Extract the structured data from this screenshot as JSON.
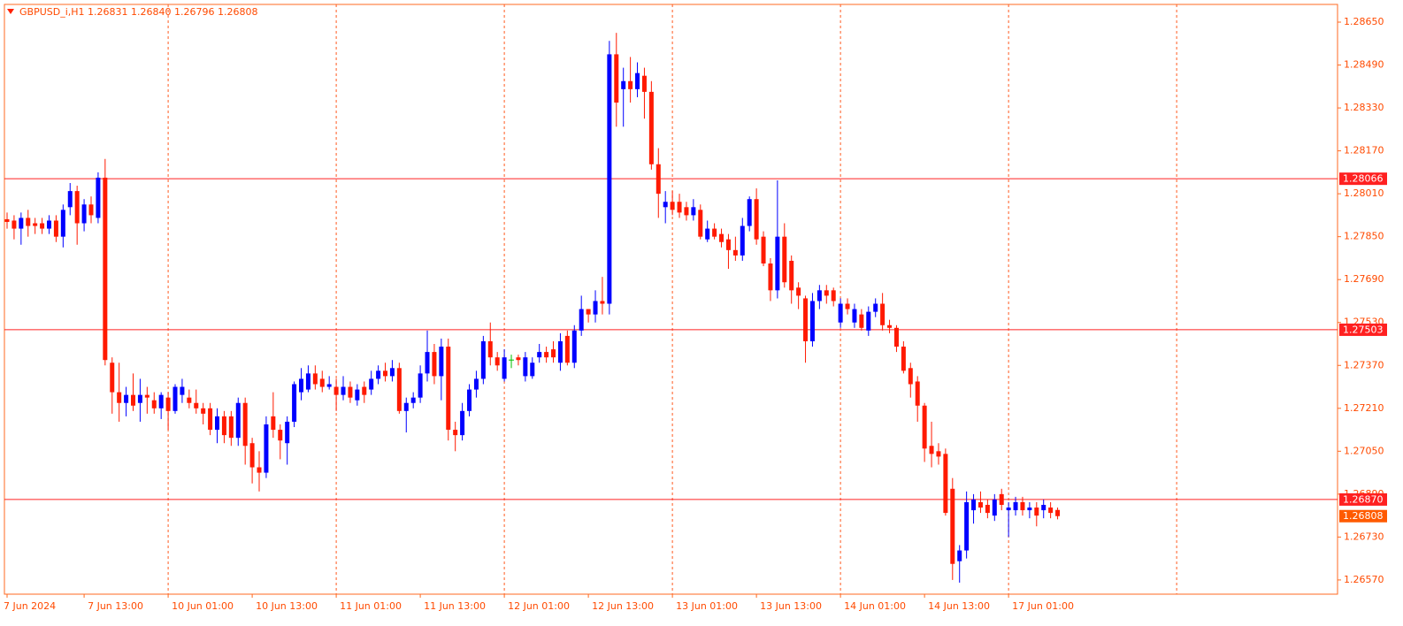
{
  "chart_data": {
    "type": "candlestick",
    "title": "GBPUSD_i,H1  1.26831 1.26840 1.26796 1.26808",
    "up_color": "#0000ff",
    "down_color": "#ff1a00",
    "doji_color": "#00c000",
    "grid": true,
    "ylim": [
      1.26517,
      1.28716
    ],
    "yticks": [
      {
        "value": 1.2865,
        "label": "1.28650"
      },
      {
        "value": 1.2849,
        "label": "1.28490"
      },
      {
        "value": 1.2833,
        "label": "1.28330"
      },
      {
        "value": 1.2817,
        "label": "1.28170"
      },
      {
        "value": 1.2801,
        "label": "1.28010"
      },
      {
        "value": 1.2785,
        "label": "1.27850"
      },
      {
        "value": 1.2769,
        "label": "1.27690"
      },
      {
        "value": 1.2753,
        "label": "1.27530"
      },
      {
        "value": 1.2737,
        "label": "1.27370"
      },
      {
        "value": 1.2721,
        "label": "1.27210"
      },
      {
        "value": 1.2705,
        "label": "1.27050"
      },
      {
        "value": 1.2689,
        "label": "1.26890"
      },
      {
        "value": 1.2673,
        "label": "1.26730"
      },
      {
        "value": 1.2657,
        "label": "1.26570"
      }
    ],
    "hlines": [
      {
        "value": 1.28066,
        "label": "1.28066"
      },
      {
        "value": 1.27503,
        "label": "1.27503"
      },
      {
        "value": 1.2687,
        "label": "1.26870"
      }
    ],
    "price_label": {
      "value": 1.26808,
      "label": "1.26808"
    },
    "categories": [
      "7 Jun 2024",
      null,
      null,
      null,
      null,
      null,
      null,
      null,
      null,
      null,
      null,
      "7 Jun 13:00",
      null,
      null,
      null,
      null,
      null,
      null,
      null,
      null,
      null,
      null,
      null,
      "10 Jun 01:00",
      null,
      null,
      null,
      null,
      null,
      null,
      null,
      null,
      null,
      null,
      null,
      "10 Jun 13:00",
      null,
      null,
      null,
      null,
      null,
      null,
      null,
      null,
      null,
      null,
      null,
      "11 Jun 01:00",
      null,
      null,
      null,
      null,
      null,
      null,
      null,
      null,
      null,
      null,
      null,
      "11 Jun 13:00",
      null,
      null,
      null,
      null,
      null,
      null,
      null,
      null,
      null,
      null,
      null,
      "12 Jun 01:00",
      null,
      null,
      null,
      null,
      null,
      null,
      null,
      null,
      null,
      null,
      null,
      "12 Jun 13:00",
      null,
      null,
      null,
      null,
      null,
      null,
      null,
      null,
      null,
      null,
      null,
      "13 Jun 01:00",
      null,
      null,
      null,
      null,
      null,
      null,
      null,
      null,
      null,
      null,
      null,
      "13 Jun 13:00",
      null,
      null,
      null,
      null,
      null,
      null,
      null,
      null,
      null,
      null,
      null,
      "14 Jun 01:00",
      null,
      null,
      null,
      null,
      null,
      null,
      null,
      null,
      null,
      null,
      null,
      "14 Jun 13:00",
      null,
      null,
      null,
      null,
      null,
      null,
      null,
      null,
      null,
      null,
      null,
      "17 Jun 01:00",
      null,
      null,
      null,
      null,
      null,
      null,
      null
    ],
    "ohlc": [
      [
        1.27915,
        1.2794,
        1.2788,
        1.27905
      ],
      [
        1.2791,
        1.2793,
        1.2784,
        1.2788
      ],
      [
        1.2788,
        1.2794,
        1.2782,
        1.2792
      ],
      [
        1.2792,
        1.2795,
        1.2785,
        1.2789
      ],
      [
        1.279,
        1.2792,
        1.2786,
        1.2789
      ],
      [
        1.279,
        1.2792,
        1.2786,
        1.2788
      ],
      [
        1.2788,
        1.2793,
        1.2786,
        1.2791
      ],
      [
        1.2791,
        1.2793,
        1.2783,
        1.2785
      ],
      [
        1.2785,
        1.2797,
        1.2781,
        1.2795
      ],
      [
        1.2796,
        1.2805,
        1.2793,
        1.2802
      ],
      [
        1.2802,
        1.2804,
        1.2782,
        1.279
      ],
      [
        1.279,
        1.2799,
        1.2787,
        1.2797
      ],
      [
        1.2797,
        1.28,
        1.279,
        1.2793
      ],
      [
        1.2792,
        1.2809,
        1.279,
        1.2807
      ],
      [
        1.2807,
        1.2814,
        1.2737,
        1.2739
      ],
      [
        1.2738,
        1.274,
        1.2719,
        1.2727
      ],
      [
        1.2727,
        1.2738,
        1.2716,
        1.2723
      ],
      [
        1.2723,
        1.2729,
        1.2718,
        1.2726
      ],
      [
        1.2726,
        1.2734,
        1.272,
        1.2722
      ],
      [
        1.2723,
        1.2732,
        1.2716,
        1.2726
      ],
      [
        1.2726,
        1.2729,
        1.2719,
        1.2725
      ],
      [
        1.2724,
        1.2727,
        1.2719,
        1.2721
      ],
      [
        1.2721,
        1.2727,
        1.2717,
        1.2726
      ],
      [
        1.2725,
        1.2727,
        1.2713,
        1.272
      ],
      [
        1.272,
        1.273,
        1.2719,
        1.2729
      ],
      [
        1.2726,
        1.2732,
        1.2723,
        1.2729
      ],
      [
        1.2725,
        1.2728,
        1.2721,
        1.2723
      ],
      [
        1.2723,
        1.2728,
        1.2719,
        1.2721
      ],
      [
        1.2721,
        1.2723,
        1.2715,
        1.2719
      ],
      [
        1.2721,
        1.2723,
        1.2711,
        1.2713
      ],
      [
        1.2713,
        1.2721,
        1.2708,
        1.2718
      ],
      [
        1.2718,
        1.272,
        1.2708,
        1.2711
      ],
      [
        1.2718,
        1.272,
        1.2707,
        1.271
      ],
      [
        1.271,
        1.2725,
        1.2707,
        1.2723
      ],
      [
        1.2723,
        1.2725,
        1.27,
        1.2707
      ],
      [
        1.2708,
        1.271,
        1.2693,
        1.2699
      ],
      [
        1.2699,
        1.2705,
        1.269,
        1.2697
      ],
      [
        1.2697,
        1.2718,
        1.2695,
        1.2715
      ],
      [
        1.2718,
        1.2727,
        1.271,
        1.2713
      ],
      [
        1.2713,
        1.2715,
        1.2702,
        1.2709
      ],
      [
        1.2708,
        1.2718,
        1.27,
        1.2716
      ],
      [
        1.2716,
        1.2731,
        1.2714,
        1.273
      ],
      [
        1.2727,
        1.2736,
        1.2724,
        1.2732
      ],
      [
        1.2728,
        1.2737,
        1.2727,
        1.2734
      ],
      [
        1.2734,
        1.2737,
        1.2728,
        1.273
      ],
      [
        1.2732,
        1.2735,
        1.2727,
        1.2729
      ],
      [
        1.2729,
        1.2733,
        1.2728,
        1.273
      ],
      [
        1.2729,
        1.2732,
        1.272,
        1.2726
      ],
      [
        1.2726,
        1.2733,
        1.2724,
        1.2729
      ],
      [
        1.2729,
        1.2731,
        1.2723,
        1.2725
      ],
      [
        1.2724,
        1.273,
        1.2722,
        1.2728
      ],
      [
        1.2729,
        1.2731,
        1.2723,
        1.2726
      ],
      [
        1.2728,
        1.2735,
        1.2726,
        1.2732
      ],
      [
        1.2732,
        1.2737,
        1.273,
        1.2735
      ],
      [
        1.2735,
        1.2738,
        1.2731,
        1.2733
      ],
      [
        1.2733,
        1.2739,
        1.2731,
        1.2736
      ],
      [
        1.2736,
        1.2738,
        1.2719,
        1.272
      ],
      [
        1.272,
        1.2725,
        1.2712,
        1.2723
      ],
      [
        1.2723,
        1.2727,
        1.2721,
        1.2725
      ],
      [
        1.2725,
        1.2737,
        1.2723,
        1.2734
      ],
      [
        1.2734,
        1.275,
        1.2731,
        1.2742
      ],
      [
        1.2742,
        1.2745,
        1.273,
        1.2733
      ],
      [
        1.2733,
        1.2747,
        1.2724,
        1.2744
      ],
      [
        1.2744,
        1.2747,
        1.2709,
        1.2713
      ],
      [
        1.2713,
        1.2716,
        1.2705,
        1.2711
      ],
      [
        1.2711,
        1.2723,
        1.2709,
        1.272
      ],
      [
        1.272,
        1.273,
        1.2718,
        1.2728
      ],
      [
        1.2728,
        1.2735,
        1.2725,
        1.2732
      ],
      [
        1.2732,
        1.2748,
        1.273,
        1.2746
      ],
      [
        1.2746,
        1.2753,
        1.2737,
        1.274
      ],
      [
        1.274,
        1.2742,
        1.2735,
        1.2737
      ],
      [
        1.2732,
        1.2743,
        1.2731,
        1.274
      ],
      [
        1.2739,
        1.2741,
        1.2736,
        1.2739
      ],
      [
        1.274,
        1.2741,
        1.2737,
        1.2739
      ],
      [
        1.2733,
        1.2742,
        1.2731,
        1.274
      ],
      [
        1.2733,
        1.274,
        1.2732,
        1.2738
      ],
      [
        1.274,
        1.2745,
        1.2738,
        1.2742
      ],
      [
        1.2742,
        1.2744,
        1.2738,
        1.274
      ],
      [
        1.2743,
        1.2746,
        1.2738,
        1.274
      ],
      [
        1.2738,
        1.2749,
        1.2735,
        1.2746
      ],
      [
        1.2748,
        1.275,
        1.2737,
        1.2738
      ],
      [
        1.2738,
        1.2752,
        1.2736,
        1.275
      ],
      [
        1.275,
        1.2763,
        1.2748,
        1.2758
      ],
      [
        1.2758,
        1.2758,
        1.2753,
        1.2756
      ],
      [
        1.2756,
        1.2765,
        1.2753,
        1.2761
      ],
      [
        1.2761,
        1.277,
        1.2756,
        1.276
      ],
      [
        1.276,
        1.2858,
        1.2756,
        1.2853
      ],
      [
        1.2853,
        1.2861,
        1.2826,
        1.2835
      ],
      [
        1.284,
        1.2848,
        1.2826,
        1.2843
      ],
      [
        1.2843,
        1.2852,
        1.2835,
        1.284
      ],
      [
        1.284,
        1.285,
        1.2837,
        1.2846
      ],
      [
        1.2845,
        1.2848,
        1.2829,
        1.2839
      ],
      [
        1.2839,
        1.2843,
        1.281,
        1.2812
      ],
      [
        1.2812,
        1.2818,
        1.2792,
        1.2801
      ],
      [
        1.2796,
        1.2802,
        1.279,
        1.2798
      ],
      [
        1.2798,
        1.2802,
        1.2793,
        1.2795
      ],
      [
        1.2798,
        1.2801,
        1.2792,
        1.2794
      ],
      [
        1.2796,
        1.2798,
        1.2791,
        1.2793
      ],
      [
        1.2793,
        1.2799,
        1.2791,
        1.2796
      ],
      [
        1.2795,
        1.2797,
        1.2784,
        1.2785
      ],
      [
        1.2784,
        1.2791,
        1.2783,
        1.2788
      ],
      [
        1.2788,
        1.279,
        1.2784,
        1.2785
      ],
      [
        1.2786,
        1.2788,
        1.2781,
        1.2783
      ],
      [
        1.2784,
        1.2786,
        1.2773,
        1.278
      ],
      [
        1.278,
        1.2785,
        1.2776,
        1.2778
      ],
      [
        1.2778,
        1.2792,
        1.2776,
        1.2789
      ],
      [
        1.2789,
        1.28,
        1.2787,
        1.2799
      ],
      [
        1.2799,
        1.2803,
        1.2782,
        1.2784
      ],
      [
        1.2785,
        1.2787,
        1.2774,
        1.2775
      ],
      [
        1.2775,
        1.2777,
        1.2761,
        1.2765
      ],
      [
        1.2765,
        1.2806,
        1.2762,
        1.2785
      ],
      [
        1.2785,
        1.279,
        1.2766,
        1.2768
      ],
      [
        1.2776,
        1.2778,
        1.276,
        1.2765
      ],
      [
        1.2766,
        1.2768,
        1.2758,
        1.2763
      ],
      [
        1.2762,
        1.2763,
        1.2738,
        1.2746
      ],
      [
        1.2746,
        1.2764,
        1.2744,
        1.2761
      ],
      [
        1.2761,
        1.2767,
        1.2758,
        1.2765
      ],
      [
        1.2765,
        1.2767,
        1.276,
        1.2763
      ],
      [
        1.2765,
        1.2766,
        1.2759,
        1.2761
      ],
      [
        1.2753,
        1.2762,
        1.2751,
        1.276
      ],
      [
        1.276,
        1.2762,
        1.2756,
        1.2758
      ],
      [
        1.2753,
        1.276,
        1.2751,
        1.2758
      ],
      [
        1.2756,
        1.2758,
        1.275,
        1.2751
      ],
      [
        1.275,
        1.2759,
        1.2748,
        1.2757
      ],
      [
        1.2757,
        1.2762,
        1.2755,
        1.276
      ],
      [
        1.276,
        1.2764,
        1.275,
        1.2752
      ],
      [
        1.2752,
        1.2754,
        1.2749,
        1.2751
      ],
      [
        1.2751,
        1.2752,
        1.2742,
        1.2744
      ],
      [
        1.2744,
        1.2746,
        1.2734,
        1.2735
      ],
      [
        1.2736,
        1.2738,
        1.2725,
        1.273
      ],
      [
        1.2731,
        1.2733,
        1.2716,
        1.2722
      ],
      [
        1.2722,
        1.2723,
        1.2701,
        1.2706
      ],
      [
        1.2707,
        1.2716,
        1.2699,
        1.2704
      ],
      [
        1.2705,
        1.2708,
        1.27,
        1.2703
      ],
      [
        1.2704,
        1.2706,
        1.2681,
        1.2682
      ],
      [
        1.2691,
        1.2695,
        1.2657,
        1.2663
      ],
      [
        1.2664,
        1.267,
        1.2656,
        1.2668
      ],
      [
        1.2668,
        1.269,
        1.2665,
        1.2686
      ],
      [
        1.2683,
        1.2689,
        1.2678,
        1.2687
      ],
      [
        1.2686,
        1.269,
        1.2682,
        1.2684
      ],
      [
        1.2685,
        1.2687,
        1.268,
        1.2682
      ],
      [
        1.2681,
        1.2689,
        1.2679,
        1.2687
      ],
      [
        1.2689,
        1.2691,
        1.2683,
        1.2685
      ],
      [
        1.2683,
        1.2686,
        1.2673,
        1.2684
      ],
      [
        1.2683,
        1.2688,
        1.2681,
        1.2686
      ],
      [
        1.2686,
        1.2688,
        1.2681,
        1.2683
      ],
      [
        1.2683,
        1.2686,
        1.268,
        1.2684
      ],
      [
        1.2684,
        1.2686,
        1.2677,
        1.2681
      ],
      [
        1.2683,
        1.2687,
        1.268,
        1.2685
      ],
      [
        1.2684,
        1.2686,
        1.268,
        1.2682
      ],
      [
        1.26831,
        1.2684,
        1.26796,
        1.26808
      ]
    ]
  }
}
